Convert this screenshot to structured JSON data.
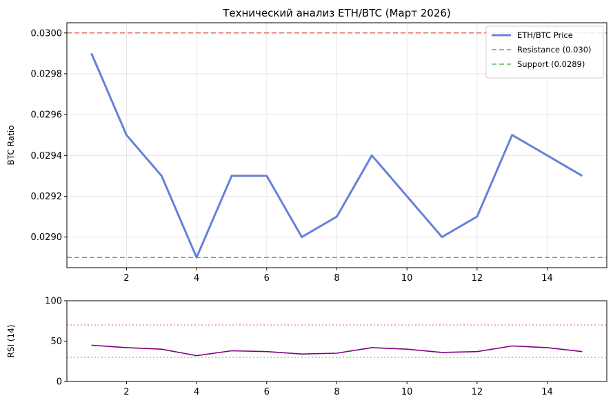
{
  "chart_data": [
    {
      "type": "line",
      "title": "Технический анализ ETH/BTC (Март 2026)",
      "xlabel": "",
      "ylabel": "BTC Ratio",
      "xlim": [
        0.3,
        15.7
      ],
      "ylim": [
        0.02885,
        0.03005
      ],
      "x": [
        1,
        2,
        3,
        4,
        5,
        6,
        7,
        8,
        9,
        10,
        11,
        12,
        13,
        14,
        15
      ],
      "xticks": [
        2,
        4,
        6,
        8,
        10,
        12,
        14
      ],
      "yticks": [
        0.029,
        0.0292,
        0.0294,
        0.0296,
        0.0298,
        0.03
      ],
      "ytick_labels": [
        "0.0290",
        "0.0292",
        "0.0294",
        "0.0296",
        "0.0298",
        "0.0300"
      ],
      "grid": true,
      "legend_position": "top-right",
      "series": [
        {
          "name": "ETH/BTC Price",
          "color": "#6680dd",
          "style": "solid",
          "values": [
            0.0299,
            0.0295,
            0.0293,
            0.0289,
            0.0293,
            0.0293,
            0.029,
            0.0291,
            0.0294,
            0.0292,
            0.029,
            0.0291,
            0.0295,
            0.0294,
            0.0293
          ]
        }
      ],
      "reference_lines": [
        {
          "name": "Resistance (0.030)",
          "y": 0.03,
          "color": "#e8625f",
          "style": "dashed"
        },
        {
          "name": "Support (0.0289)",
          "y": 0.0289,
          "color": "#5cb85c",
          "style": "dashed"
        }
      ]
    },
    {
      "type": "line",
      "title": "",
      "xlabel": "",
      "ylabel": "RSI (14)",
      "xlim": [
        0.3,
        15.7
      ],
      "ylim": [
        0,
        100
      ],
      "x": [
        1,
        2,
        3,
        4,
        5,
        6,
        7,
        8,
        9,
        10,
        11,
        12,
        13,
        14,
        15
      ],
      "xticks": [
        2,
        4,
        6,
        8,
        10,
        12,
        14
      ],
      "yticks": [
        0,
        50,
        100
      ],
      "ytick_labels": [
        "0",
        "50",
        "100"
      ],
      "grid": false,
      "series": [
        {
          "color": "#800080",
          "style": "solid",
          "values": [
            45,
            42,
            40,
            32,
            38,
            37,
            34,
            35,
            42,
            40,
            36,
            37,
            44,
            42,
            37
          ]
        }
      ],
      "reference_lines": [
        {
          "y": 70,
          "color": "#f08a82",
          "style": "dotted"
        },
        {
          "y": 30,
          "color": "#7ccf7c",
          "style": "dotted"
        }
      ]
    }
  ]
}
